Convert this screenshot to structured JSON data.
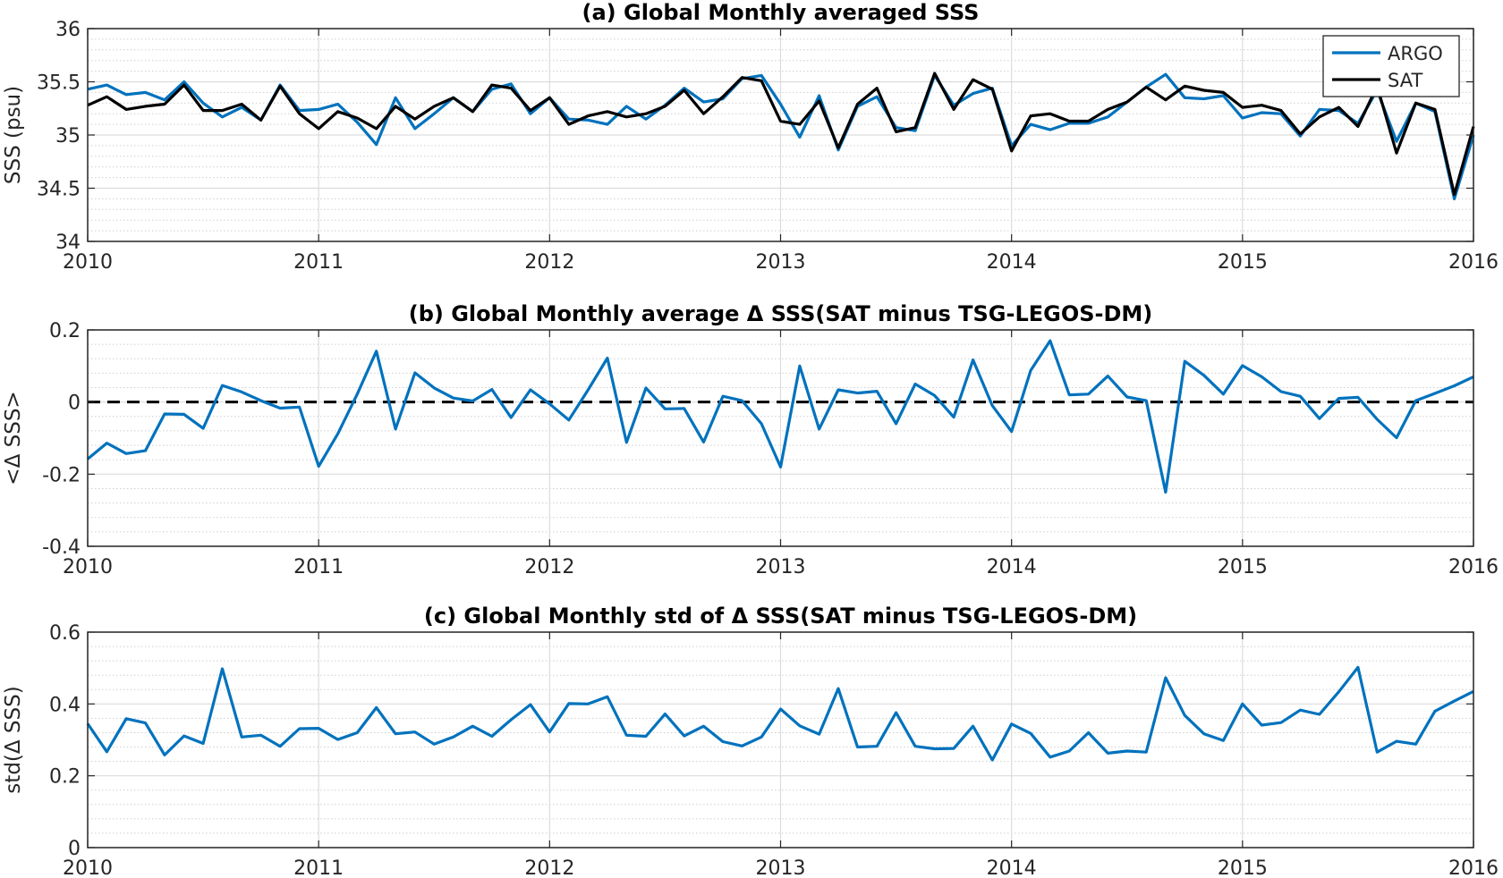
{
  "chart_data": [
    {
      "type": "line",
      "title": "(a) Global Monthly averaged SSS",
      "xlabel": "",
      "ylabel": "SSS (psu)",
      "xlim": [
        2010,
        2016
      ],
      "ylim": [
        34,
        36
      ],
      "xticks": [
        2010,
        2011,
        2012,
        2013,
        2014,
        2015,
        2016
      ],
      "xtick_labels": [
        "2010",
        "2011",
        "2012",
        "2013",
        "2014",
        "2015",
        "2016"
      ],
      "yticks": [
        34,
        34.5,
        35,
        35.5,
        36
      ],
      "ytick_labels": [
        "34",
        "34.5",
        "35",
        "35.5",
        "36"
      ],
      "grid": true,
      "minor_grid": true,
      "legend_position": "top-right",
      "x": [
        2010.0,
        2010.083,
        2010.167,
        2010.25,
        2010.333,
        2010.417,
        2010.5,
        2010.583,
        2010.667,
        2010.75,
        2010.833,
        2010.917,
        2011.0,
        2011.083,
        2011.167,
        2011.25,
        2011.333,
        2011.417,
        2011.5,
        2011.583,
        2011.667,
        2011.75,
        2011.833,
        2011.917,
        2012.0,
        2012.083,
        2012.167,
        2012.25,
        2012.333,
        2012.417,
        2012.5,
        2012.583,
        2012.667,
        2012.75,
        2012.833,
        2012.917,
        2013.0,
        2013.083,
        2013.167,
        2013.25,
        2013.333,
        2013.417,
        2013.5,
        2013.583,
        2013.667,
        2013.75,
        2013.833,
        2013.917,
        2014.0,
        2014.083,
        2014.167,
        2014.25,
        2014.333,
        2014.417,
        2014.5,
        2014.583,
        2014.667,
        2014.75,
        2014.833,
        2014.917,
        2015.0,
        2015.083,
        2015.167,
        2015.25,
        2015.333,
        2015.417,
        2015.5,
        2015.583,
        2015.667,
        2015.75,
        2015.833,
        2015.917,
        2016.0
      ],
      "series": [
        {
          "name": "ARGO",
          "color": "#0072BD",
          "values": [
            35.43,
            35.47,
            35.38,
            35.4,
            35.33,
            35.5,
            35.3,
            35.17,
            35.26,
            35.14,
            35.47,
            35.23,
            35.24,
            35.29,
            35.12,
            34.91,
            35.35,
            35.06,
            35.2,
            35.35,
            35.22,
            35.43,
            35.48,
            35.2,
            35.35,
            35.15,
            35.14,
            35.1,
            35.27,
            35.15,
            35.28,
            35.44,
            35.31,
            35.34,
            35.53,
            35.56,
            35.29,
            34.98,
            35.37,
            34.86,
            35.27,
            35.36,
            35.07,
            35.04,
            35.56,
            35.28,
            35.39,
            35.44,
            34.9,
            35.1,
            35.05,
            35.11,
            35.11,
            35.17,
            35.31,
            35.45,
            35.57,
            35.35,
            35.34,
            35.37,
            35.16,
            35.21,
            35.2,
            34.99,
            35.24,
            35.23,
            35.11,
            35.42,
            34.94,
            35.3,
            35.22,
            34.4,
            35.0
          ]
        },
        {
          "name": "SAT",
          "color": "#000000",
          "values": [
            35.28,
            35.36,
            35.24,
            35.27,
            35.29,
            35.47,
            35.23,
            35.23,
            35.29,
            35.14,
            35.46,
            35.2,
            35.06,
            35.22,
            35.16,
            35.06,
            35.27,
            35.15,
            35.27,
            35.35,
            35.22,
            35.47,
            35.44,
            35.23,
            35.35,
            35.1,
            35.18,
            35.22,
            35.17,
            35.2,
            35.27,
            35.42,
            35.2,
            35.36,
            35.54,
            35.51,
            35.13,
            35.1,
            35.32,
            34.88,
            35.29,
            35.44,
            35.03,
            35.07,
            35.58,
            35.24,
            35.52,
            35.43,
            34.85,
            35.18,
            35.2,
            35.13,
            35.13,
            35.24,
            35.31,
            35.45,
            35.33,
            35.46,
            35.42,
            35.4,
            35.26,
            35.28,
            35.23,
            35.01,
            35.17,
            35.26,
            35.08,
            35.46,
            34.83,
            35.3,
            35.24,
            34.44,
            35.08
          ]
        }
      ]
    },
    {
      "type": "line",
      "title": "(b) Global Monthly average Δ SSS(SAT minus TSG-LEGOS-DM)",
      "xlabel": "",
      "ylabel": "<Δ SSS>",
      "xlim": [
        2010,
        2016
      ],
      "ylim": [
        -0.4,
        0.2
      ],
      "xticks": [
        2010,
        2011,
        2012,
        2013,
        2014,
        2015,
        2016
      ],
      "xtick_labels": [
        "2010",
        "2011",
        "2012",
        "2013",
        "2014",
        "2015",
        "2016"
      ],
      "yticks": [
        -0.4,
        -0.2,
        0,
        0.2
      ],
      "ytick_labels": [
        "-0.4",
        "-0.2",
        "0",
        "0.2"
      ],
      "grid": true,
      "minor_grid": true,
      "reference_line": {
        "y": 0,
        "style": "dashed",
        "color": "#000000"
      },
      "x": [
        2010.0,
        2010.083,
        2010.167,
        2010.25,
        2010.333,
        2010.417,
        2010.5,
        2010.583,
        2010.667,
        2010.75,
        2010.833,
        2010.917,
        2011.0,
        2011.083,
        2011.167,
        2011.25,
        2011.333,
        2011.417,
        2011.5,
        2011.583,
        2011.667,
        2011.75,
        2011.833,
        2011.917,
        2012.0,
        2012.083,
        2012.167,
        2012.25,
        2012.333,
        2012.417,
        2012.5,
        2012.583,
        2012.667,
        2012.75,
        2012.833,
        2012.917,
        2013.0,
        2013.083,
        2013.167,
        2013.25,
        2013.333,
        2013.417,
        2013.5,
        2013.583,
        2013.667,
        2013.75,
        2013.833,
        2013.917,
        2014.0,
        2014.083,
        2014.167,
        2014.25,
        2014.333,
        2014.417,
        2014.5,
        2014.583,
        2014.667,
        2014.75,
        2014.833,
        2014.917,
        2015.0,
        2015.083,
        2015.167,
        2015.25,
        2015.333,
        2015.417,
        2015.5,
        2015.583,
        2015.667,
        2015.75,
        2015.833,
        2015.917,
        2016.0
      ],
      "series": [
        {
          "color": "#0072BD",
          "values": [
            -0.158,
            -0.114,
            -0.143,
            -0.135,
            -0.033,
            -0.034,
            -0.073,
            0.046,
            0.028,
            0.004,
            -0.017,
            -0.014,
            -0.178,
            -0.088,
            0.022,
            0.141,
            -0.075,
            0.081,
            0.039,
            0.011,
            0.003,
            0.035,
            -0.043,
            0.034,
            -0.005,
            -0.05,
            0.034,
            0.122,
            -0.112,
            0.039,
            -0.019,
            -0.018,
            -0.111,
            0.016,
            0.004,
            -0.06,
            -0.18,
            0.1,
            -0.075,
            0.034,
            0.025,
            0.03,
            -0.06,
            0.05,
            0.018,
            -0.042,
            0.117,
            -0.01,
            -0.082,
            0.088,
            0.17,
            0.02,
            0.022,
            0.072,
            0.014,
            0.004,
            -0.25,
            0.113,
            0.074,
            0.022,
            0.101,
            0.07,
            0.029,
            0.016,
            -0.046,
            0.01,
            0.013,
            -0.048,
            -0.099,
            0.004,
            0.024,
            0.045,
            0.07
          ]
        }
      ]
    },
    {
      "type": "line",
      "title": "(c) Global Monthly std of Δ SSS(SAT minus TSG-LEGOS-DM)",
      "xlabel": "",
      "ylabel": "std(Δ SSS)",
      "xlim": [
        2010,
        2016
      ],
      "ylim": [
        0,
        0.6
      ],
      "xticks": [
        2010,
        2011,
        2012,
        2013,
        2014,
        2015,
        2016
      ],
      "xtick_labels": [
        "2010",
        "2011",
        "2012",
        "2013",
        "2014",
        "2015",
        "2016"
      ],
      "yticks": [
        0,
        0.2,
        0.4,
        0.6
      ],
      "ytick_labels": [
        "0",
        "0.2",
        "0.4",
        "0.6"
      ],
      "grid": true,
      "minor_grid": true,
      "x": [
        2010.0,
        2010.083,
        2010.167,
        2010.25,
        2010.333,
        2010.417,
        2010.5,
        2010.583,
        2010.667,
        2010.75,
        2010.833,
        2010.917,
        2011.0,
        2011.083,
        2011.167,
        2011.25,
        2011.333,
        2011.417,
        2011.5,
        2011.583,
        2011.667,
        2011.75,
        2011.833,
        2011.917,
        2012.0,
        2012.083,
        2012.167,
        2012.25,
        2012.333,
        2012.417,
        2012.5,
        2012.583,
        2012.667,
        2012.75,
        2012.833,
        2012.917,
        2013.0,
        2013.083,
        2013.167,
        2013.25,
        2013.333,
        2013.417,
        2013.5,
        2013.583,
        2013.667,
        2013.75,
        2013.833,
        2013.917,
        2014.0,
        2014.083,
        2014.167,
        2014.25,
        2014.333,
        2014.417,
        2014.5,
        2014.583,
        2014.667,
        2014.75,
        2014.833,
        2014.917,
        2015.0,
        2015.083,
        2015.167,
        2015.25,
        2015.333,
        2015.417,
        2015.5,
        2015.583,
        2015.667,
        2015.75,
        2015.833,
        2015.917,
        2016.0
      ],
      "series": [
        {
          "color": "#0072BD",
          "values": [
            0.345,
            0.267,
            0.359,
            0.347,
            0.258,
            0.311,
            0.29,
            0.498,
            0.308,
            0.313,
            0.282,
            0.331,
            0.332,
            0.301,
            0.32,
            0.39,
            0.317,
            0.322,
            0.288,
            0.308,
            0.338,
            0.31,
            0.356,
            0.398,
            0.322,
            0.401,
            0.4,
            0.42,
            0.313,
            0.31,
            0.372,
            0.311,
            0.338,
            0.295,
            0.283,
            0.308,
            0.386,
            0.339,
            0.316,
            0.443,
            0.28,
            0.282,
            0.376,
            0.282,
            0.275,
            0.276,
            0.338,
            0.244,
            0.344,
            0.318,
            0.252,
            0.269,
            0.32,
            0.263,
            0.269,
            0.266,
            0.473,
            0.368,
            0.317,
            0.298,
            0.4,
            0.341,
            0.348,
            0.383,
            0.371,
            0.434,
            0.502,
            0.266,
            0.296,
            0.288,
            0.38,
            0.408,
            0.435
          ]
        }
      ]
    }
  ]
}
